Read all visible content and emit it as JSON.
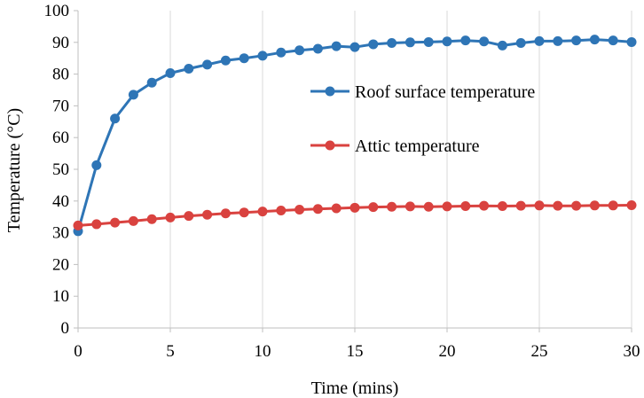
{
  "chart_data": {
    "type": "line",
    "title": "",
    "xlabel": "Time (mins)",
    "ylabel": "Temperature (°C)",
    "xlim": [
      0,
      30
    ],
    "ylim": [
      0,
      100
    ],
    "x_ticks": [
      0,
      5,
      10,
      15,
      20,
      25,
      30
    ],
    "y_ticks": [
      0,
      10,
      20,
      30,
      40,
      50,
      60,
      70,
      80,
      90,
      100
    ],
    "grid": "vertical",
    "legend_position": "center-right",
    "x": [
      0,
      1,
      2,
      3,
      4,
      5,
      6,
      7,
      8,
      9,
      10,
      11,
      12,
      13,
      14,
      15,
      16,
      17,
      18,
      19,
      20,
      21,
      22,
      23,
      24,
      25,
      26,
      27,
      28,
      29,
      30
    ],
    "series": [
      {
        "name": "Roof surface temperature",
        "color": "#2E75B6",
        "values": [
          30.5,
          51.3,
          66,
          73.5,
          77.3,
          80.3,
          81.7,
          83,
          84.3,
          85,
          85.8,
          86.8,
          87.5,
          88,
          88.8,
          88.5,
          89.4,
          89.8,
          90,
          90.1,
          90.3,
          90.6,
          90.3,
          89,
          89.8,
          90.4,
          90.4,
          90.6,
          90.9,
          90.6,
          90.1
        ]
      },
      {
        "name": "Attic temperature",
        "color": "#D9423F",
        "values": [
          32.3,
          32.7,
          33.2,
          33.7,
          34.3,
          34.8,
          35.3,
          35.7,
          36.1,
          36.4,
          36.7,
          37,
          37.3,
          37.5,
          37.7,
          37.9,
          38.1,
          38.2,
          38.3,
          38.2,
          38.3,
          38.4,
          38.5,
          38.4,
          38.5,
          38.6,
          38.5,
          38.5,
          38.6,
          38.6,
          38.7
        ]
      }
    ]
  }
}
